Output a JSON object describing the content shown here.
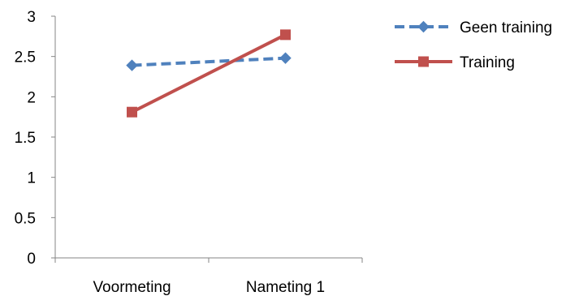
{
  "chart_data": {
    "type": "line",
    "categories": [
      "Voormeting",
      "Nameting 1"
    ],
    "series": [
      {
        "name": "Geen training",
        "values": [
          2.39,
          2.48
        ],
        "color": "#4f81bd",
        "line_style": "dashed",
        "marker": "diamond"
      },
      {
        "name": "Training",
        "values": [
          1.81,
          2.77
        ],
        "color": "#c0504d",
        "line_style": "solid",
        "marker": "square"
      }
    ],
    "ylim": [
      0,
      3
    ],
    "yticks": [
      "0",
      "0.5",
      "1",
      "1.5",
      "2",
      "2.5",
      "3"
    ],
    "grid": false,
    "legend_position": "right"
  }
}
